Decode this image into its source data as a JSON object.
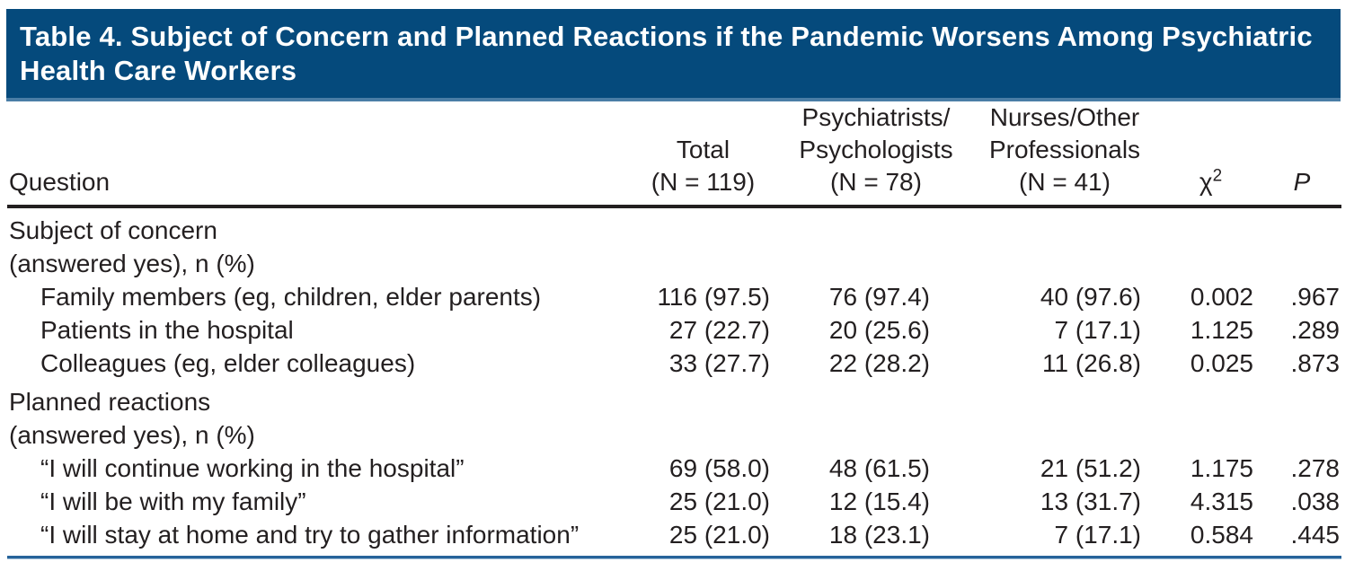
{
  "title_bar": {
    "text": "Table 4. Subject of Concern and Planned Reactions if the Pandemic Worsens Among Psychiatric Health Care Workers",
    "bg_color": "#054a7c",
    "text_color": "#ffffff"
  },
  "colors": {
    "body_text": "#231f20",
    "header_rule": "#231f20",
    "bottom_rule": "#26639a",
    "title_bar_edge": "#4a7da6"
  },
  "table": {
    "header": {
      "question": "Question",
      "total_lines": [
        "Total",
        "(N = 119)"
      ],
      "psychiatrists_lines": [
        "Psychiatrists/",
        "Psychologists",
        "(N = 78)"
      ],
      "nurses_lines": [
        "Nurses/Other",
        "Professionals",
        "(N = 41)"
      ],
      "chi": {
        "symbol": "χ",
        "superscript": "2"
      },
      "p": "P"
    },
    "rows": [
      {
        "type": "group",
        "lines": [
          "Subject of concern",
          "(answered yes), n (%)"
        ]
      },
      {
        "type": "item",
        "label": "Family members (eg, children, elder parents)",
        "total": "116 (97.5)",
        "psychiatrists": "76 (97.4)",
        "nurses": "40 (97.6)",
        "chi2": "0.002",
        "p": ".967"
      },
      {
        "type": "item",
        "label": "Patients in the hospital",
        "total": "27 (22.7)",
        "psychiatrists": "20 (25.6)",
        "nurses": "7 (17.1)",
        "chi2": "1.125",
        "p": ".289"
      },
      {
        "type": "item",
        "label": "Colleagues (eg, elder colleagues)",
        "total": "33 (27.7)",
        "psychiatrists": "22 (28.2)",
        "nurses": "11 (26.8)",
        "chi2": "0.025",
        "p": ".873"
      },
      {
        "type": "group",
        "lines": [
          "Planned reactions",
          "(answered yes), n (%)"
        ]
      },
      {
        "type": "item",
        "label": "“I will continue working in the hospital”",
        "total": "69 (58.0)",
        "psychiatrists": "48 (61.5)",
        "nurses": "21 (51.2)",
        "chi2": "1.175",
        "p": ".278"
      },
      {
        "type": "item",
        "label": "“I will be with my family”",
        "total": "25 (21.0)",
        "psychiatrists": "12 (15.4)",
        "nurses": "13 (31.7)",
        "chi2": "4.315",
        "p": ".038"
      },
      {
        "type": "item",
        "label": "“I will stay at home and try to gather information”",
        "total": "25 (21.0)",
        "psychiatrists": "18 (23.1)",
        "nurses": "7 (17.1)",
        "chi2": "0.584",
        "p": ".445"
      }
    ]
  }
}
